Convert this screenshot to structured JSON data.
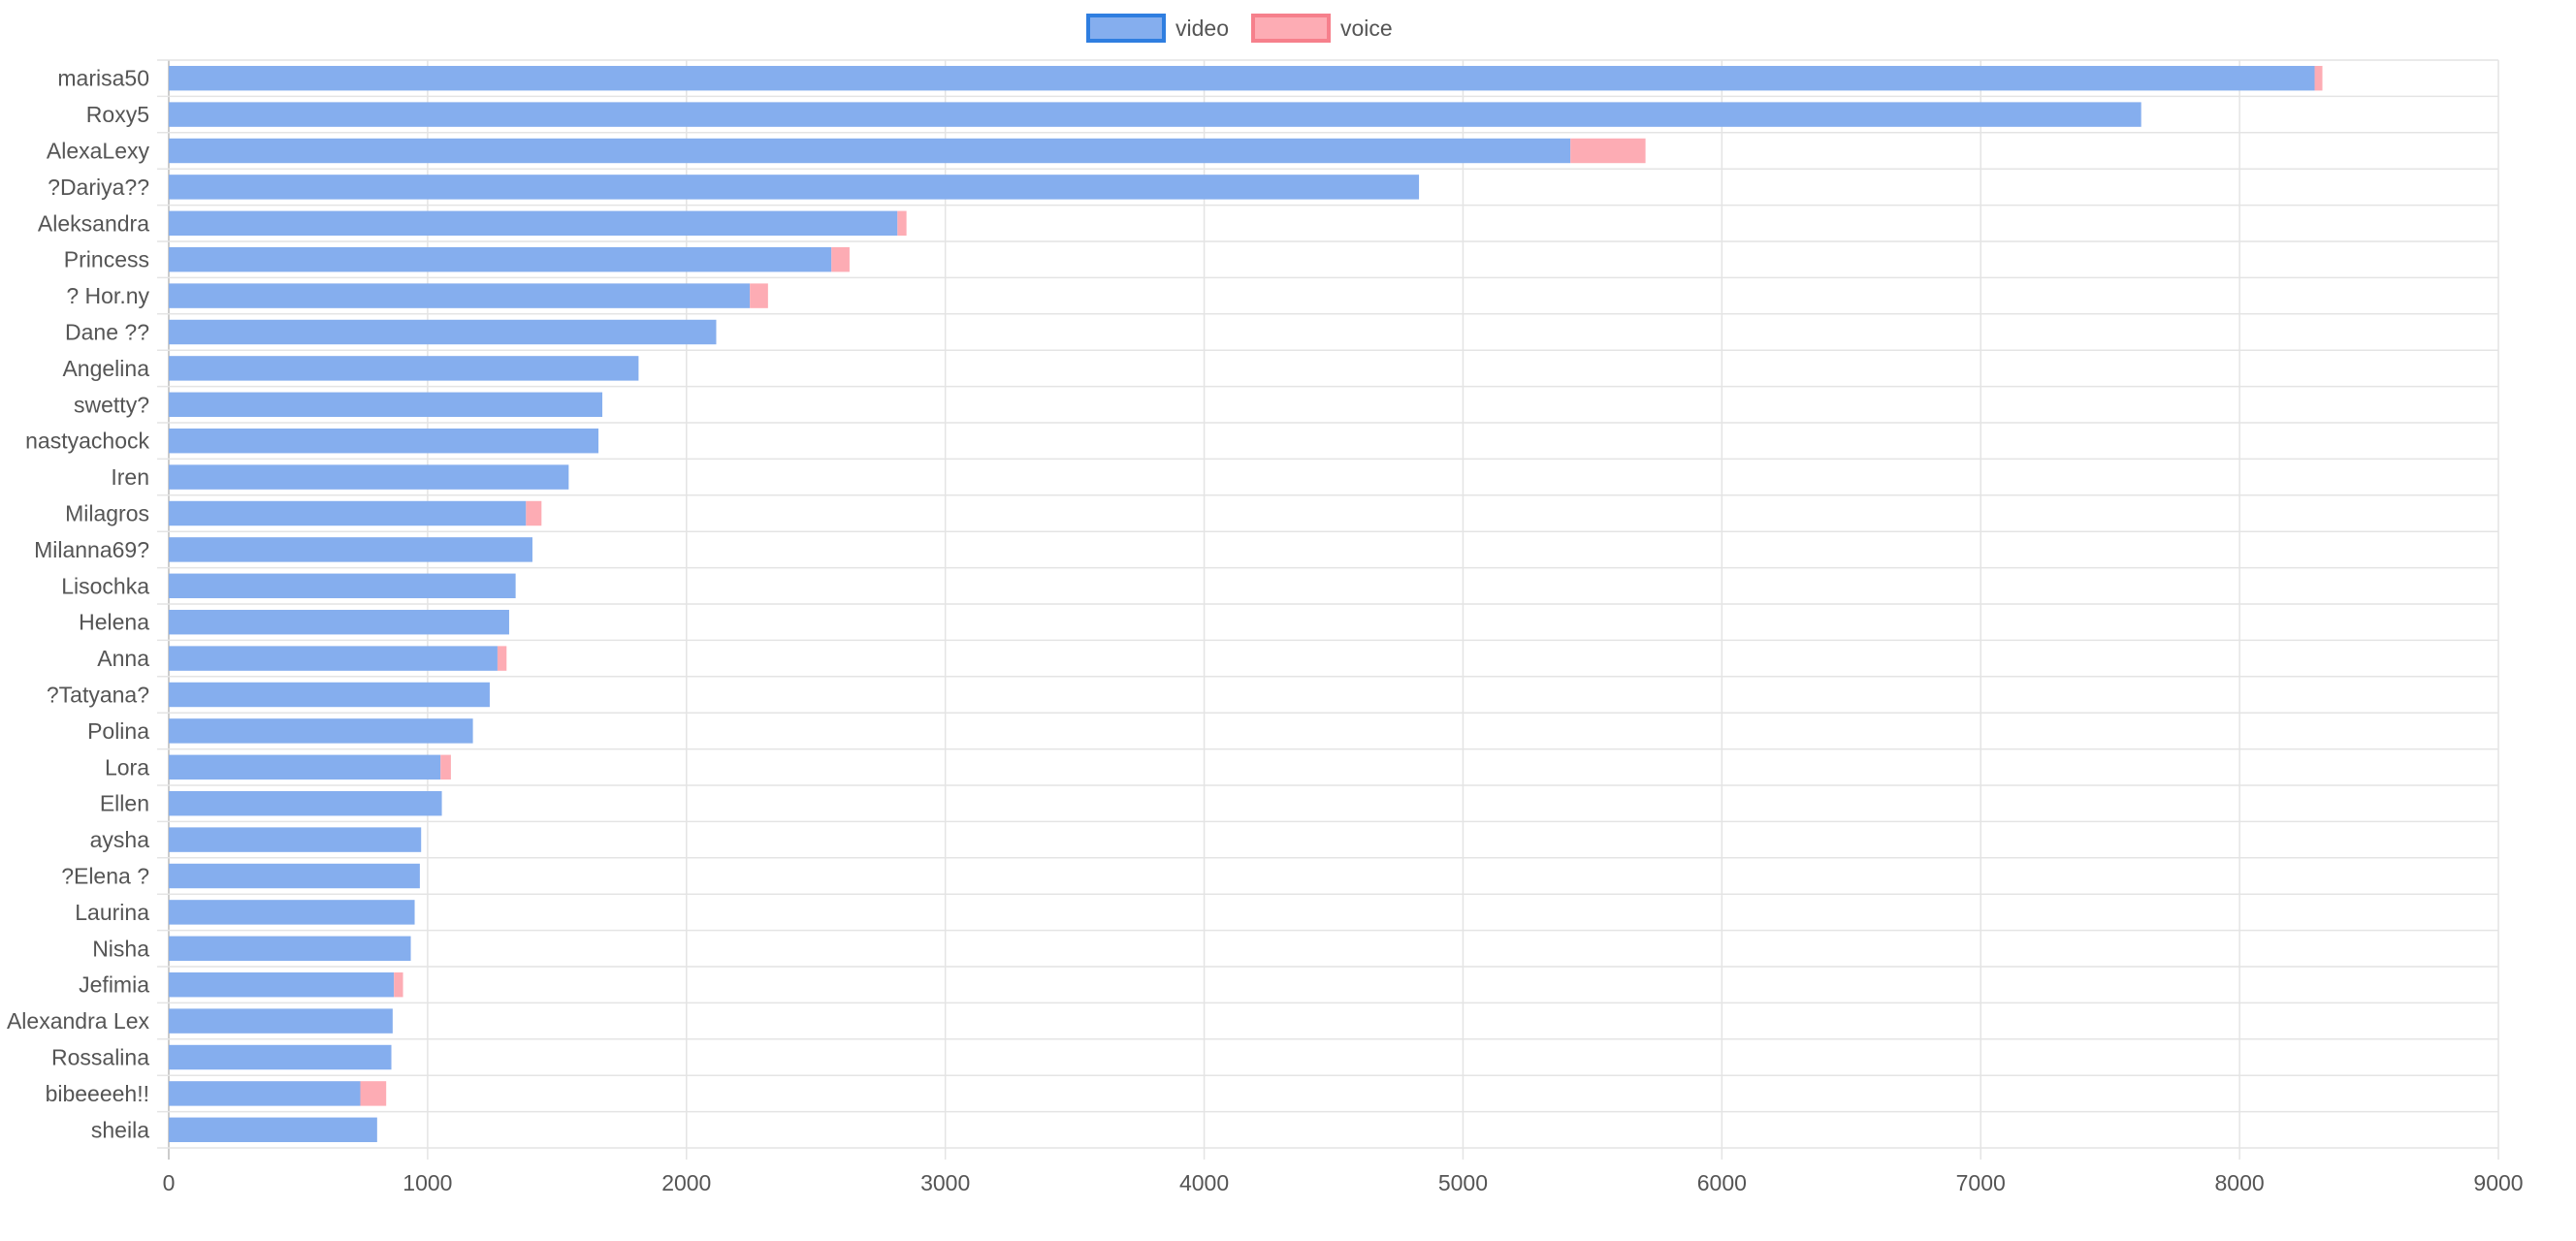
{
  "chart_data": {
    "type": "bar",
    "orientation": "horizontal",
    "stacked": true,
    "categories": [
      "marisa50",
      "Roxy5",
      "AlexaLexy",
      "?Dariya??",
      "Aleksandra",
      "Princess",
      "? Hor.ny",
      "Dane ??",
      "Angelina",
      "swetty?",
      "nastyachock",
      "Iren",
      "Milagros",
      "Milanna69?",
      "Lisochka",
      "Helena",
      "Anna",
      "?Tatyana?",
      "Polina",
      "Lora",
      "Ellen",
      "aysha",
      "?Elena ?",
      "Laurina",
      "Nisha",
      "Jefimia",
      "Alexandra Lex",
      "Rossalina",
      "bibeeeeh!!",
      "sheila"
    ],
    "series": [
      {
        "name": "video",
        "color": "#85aeee",
        "border": "#2f7ee0",
        "values": [
          8290,
          7620,
          5415,
          4830,
          2815,
          2560,
          2245,
          2115,
          1815,
          1675,
          1660,
          1545,
          1380,
          1405,
          1340,
          1315,
          1270,
          1240,
          1175,
          1050,
          1055,
          975,
          970,
          950,
          935,
          870,
          865,
          860,
          740,
          805
        ]
      },
      {
        "name": "voice",
        "color": "#fdacb4",
        "border": "#f6808c",
        "values": [
          30,
          0,
          290,
          0,
          35,
          70,
          70,
          0,
          0,
          0,
          0,
          0,
          60,
          0,
          0,
          0,
          35,
          0,
          0,
          40,
          0,
          0,
          0,
          0,
          0,
          35,
          0,
          0,
          100,
          0
        ]
      }
    ],
    "xlim": [
      0,
      9000
    ],
    "xticks": [
      0,
      1000,
      2000,
      3000,
      4000,
      5000,
      6000,
      7000,
      8000,
      9000
    ],
    "grid": true,
    "legend": "top-center"
  }
}
